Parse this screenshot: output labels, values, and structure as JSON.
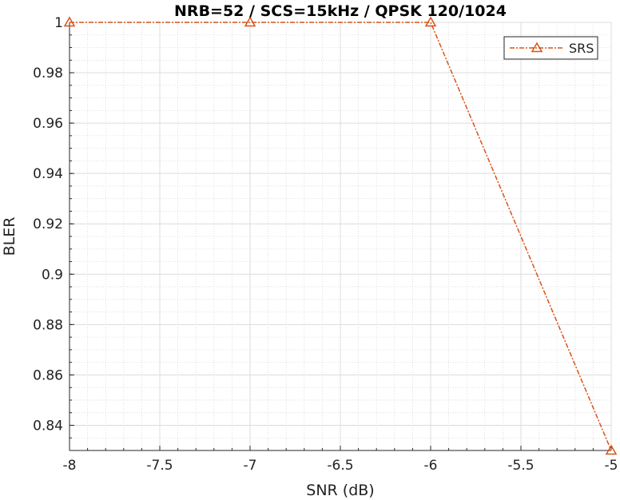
{
  "chart_data": {
    "type": "line",
    "title": "NRB=52 / SCS=15kHz / QPSK 120/1024",
    "xlabel": "SNR (dB)",
    "ylabel": "BLER",
    "xlim": [
      -8,
      -5
    ],
    "ylim": [
      0.83,
      1.0
    ],
    "x_ticks": [
      -8,
      -7.5,
      -7,
      -6.5,
      -6,
      -5.5,
      -5
    ],
    "x_tick_labels": [
      "-8",
      "-7.5",
      "-7",
      "-6.5",
      "-6",
      "-5.5",
      "-5"
    ],
    "y_ticks": [
      0.84,
      0.86,
      0.88,
      0.9,
      0.92,
      0.94,
      0.96,
      0.98,
      1.0
    ],
    "y_tick_labels": [
      "0.84",
      "0.86",
      "0.88",
      "0.9",
      "0.92",
      "0.94",
      "0.96",
      "0.98",
      "1"
    ],
    "grid": true,
    "minor_grid": true,
    "legend_position": "top-right",
    "series": [
      {
        "name": "SRS",
        "color": "#d95319",
        "marker": "triangle",
        "line_style": "dash-dot",
        "x": [
          -8,
          -7,
          -6,
          -5
        ],
        "y": [
          1.0,
          1.0,
          1.0,
          0.83
        ]
      }
    ]
  }
}
